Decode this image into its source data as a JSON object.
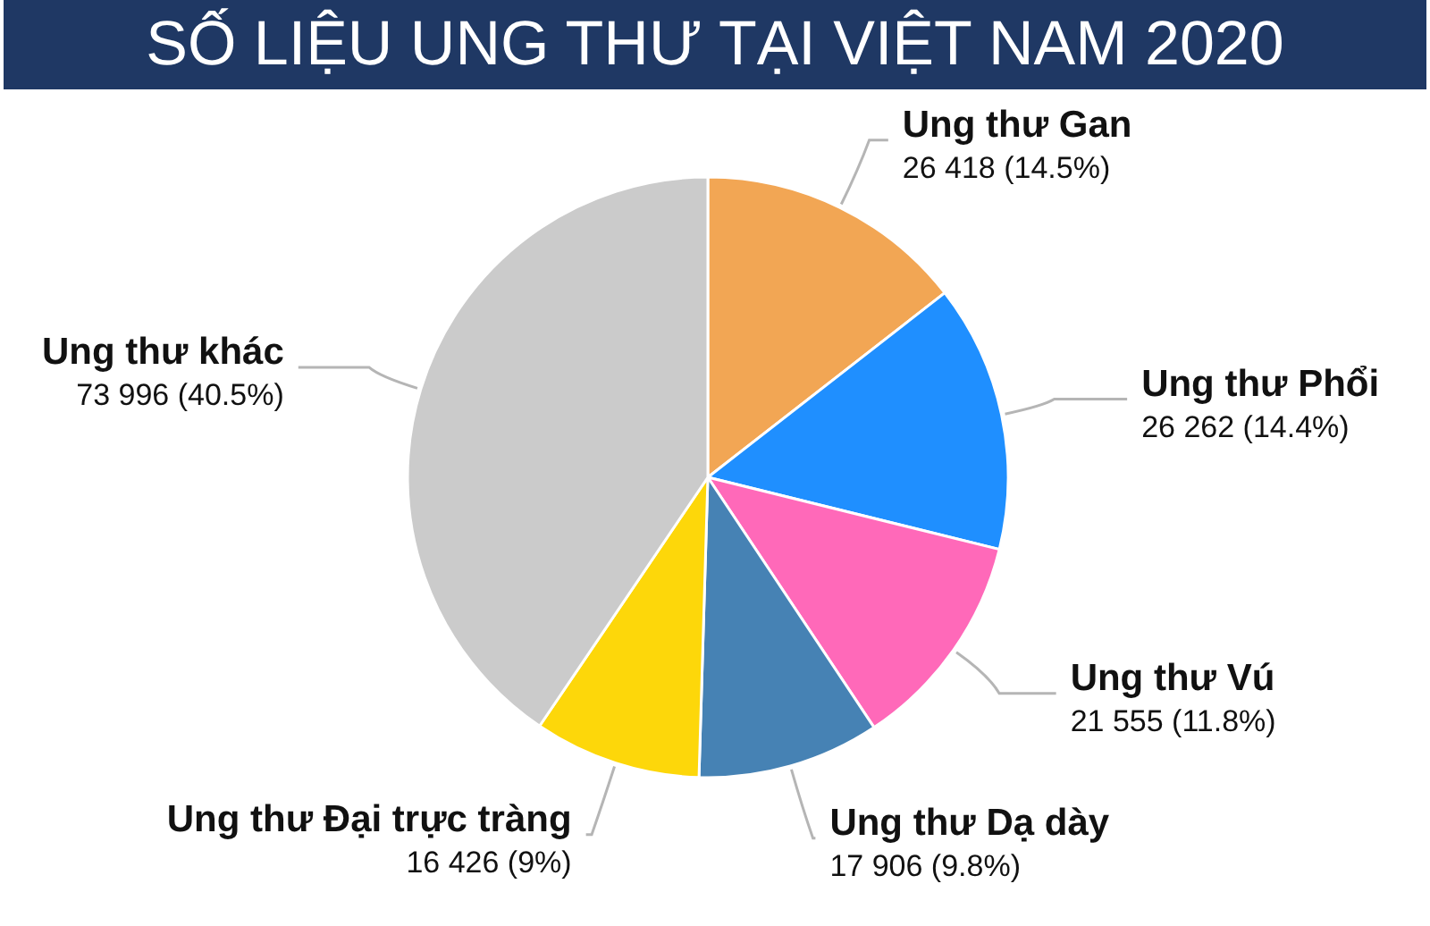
{
  "chart_data": {
    "type": "pie",
    "title": "SỐ LIỆU UNG THƯ TẠI VIỆT NAM 2020",
    "categories": [
      "Ung thư Gan",
      "Ung thư Phổi",
      "Ung thư Vú",
      "Ung thư Dạ dày",
      "Ung thư Đại trực tràng",
      "Ung thư khác"
    ],
    "values": [
      26418,
      26262,
      21555,
      17906,
      16426,
      73996
    ],
    "value_labels": [
      "26 418 (14.5%)",
      "26 262 (14.4%)",
      "21 555 (11.8%)",
      "17 906 (9.8%)",
      "16 426 (9%)",
      "73 996 (40.5%)"
    ],
    "colors": [
      "#f2a654",
      "#1f8fff",
      "#ff69b9",
      "#4682b4",
      "#fdd70a",
      "#cbcbcb"
    ]
  }
}
